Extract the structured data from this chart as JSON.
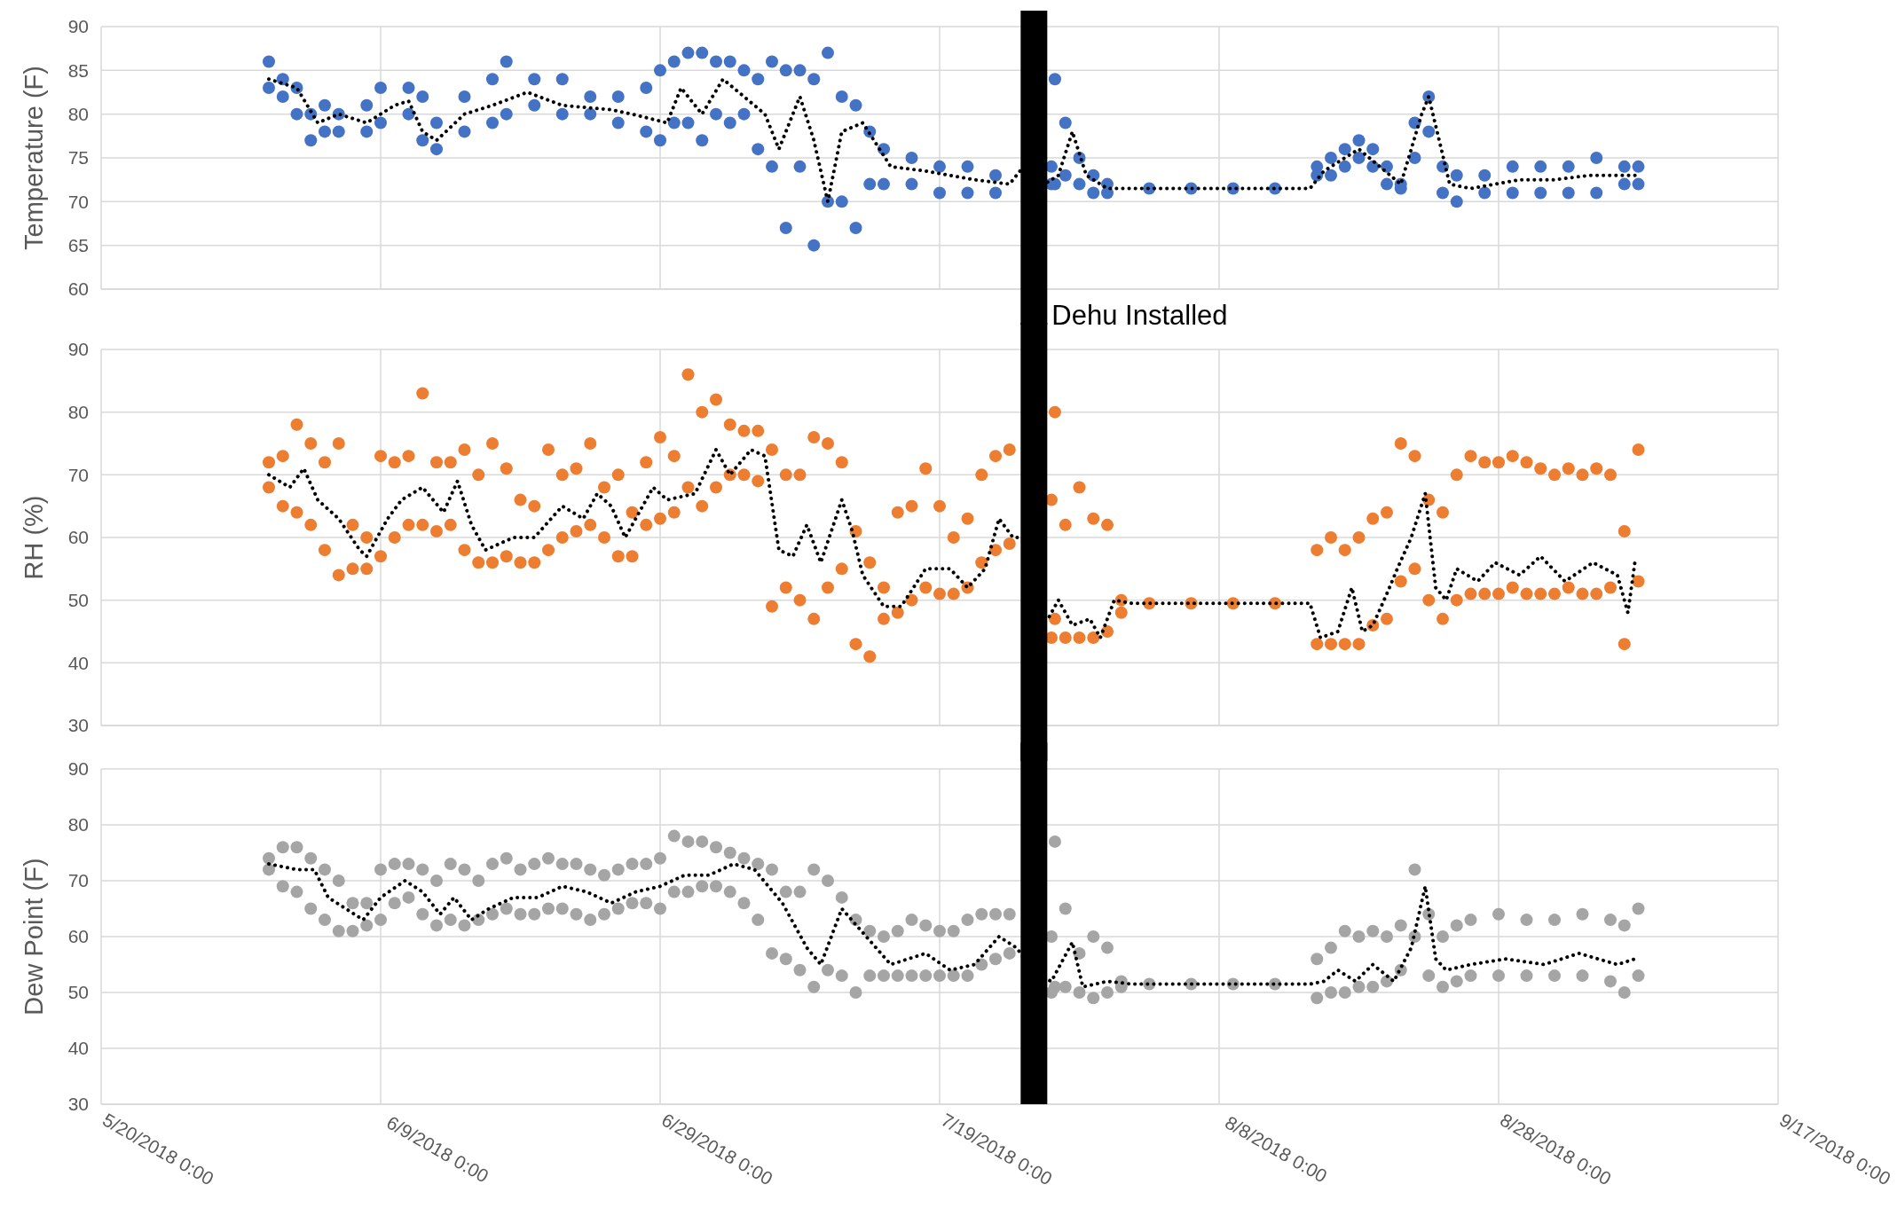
{
  "chart_data": [
    {
      "type": "scatter",
      "ylabel": "Temperature (F)",
      "xlim": [
        "2018-05-20",
        "2018-09-17"
      ],
      "ylim": [
        60,
        90
      ],
      "yticks": [
        60,
        65,
        70,
        75,
        80,
        85,
        90
      ],
      "xticks": [
        "2018-05-20",
        "2018-06-09",
        "2018-06-29",
        "2018-07-19",
        "2018-08-08",
        "2018-08-28",
        "2018-09-17"
      ],
      "tick_labels": "y",
      "grid": true,
      "ref_lines": [
        {
          "axis": "x",
          "value": "2018-07-25T18:00",
          "label": "Dehu Installed",
          "color": "#000000"
        }
      ],
      "series": [
        {
          "color": "#4472c4",
          "marker": "circle",
          "x": [
            "2018-06-01",
            "2018-06-01",
            "2018-06-02",
            "2018-06-02",
            "2018-06-03",
            "2018-06-03",
            "2018-06-04",
            "2018-06-04",
            "2018-06-05",
            "2018-06-05",
            "2018-06-06",
            "2018-06-06",
            "2018-06-08",
            "2018-06-08",
            "2018-06-09",
            "2018-06-09",
            "2018-06-11",
            "2018-06-11",
            "2018-06-12",
            "2018-06-12",
            "2018-06-13",
            "2018-06-13",
            "2018-06-15",
            "2018-06-15",
            "2018-06-17",
            "2018-06-17",
            "2018-06-18",
            "2018-06-18",
            "2018-06-20",
            "2018-06-20",
            "2018-06-22",
            "2018-06-22",
            "2018-06-24",
            "2018-06-24",
            "2018-06-26",
            "2018-06-26",
            "2018-06-28",
            "2018-06-28",
            "2018-06-29",
            "2018-06-29",
            "2018-06-30",
            "2018-06-30",
            "2018-07-01",
            "2018-07-01",
            "2018-07-02",
            "2018-07-02",
            "2018-07-03",
            "2018-07-03",
            "2018-07-04",
            "2018-07-04",
            "2018-07-05",
            "2018-07-05",
            "2018-07-06",
            "2018-07-06",
            "2018-07-07",
            "2018-07-07",
            "2018-07-08",
            "2018-07-08",
            "2018-07-09",
            "2018-07-09",
            "2018-07-10",
            "2018-07-10",
            "2018-07-11",
            "2018-07-11",
            "2018-07-12",
            "2018-07-12",
            "2018-07-13",
            "2018-07-13",
            "2018-07-14",
            "2018-07-14",
            "2018-07-15",
            "2018-07-15",
            "2018-07-17",
            "2018-07-17",
            "2018-07-19",
            "2018-07-19",
            "2018-07-21",
            "2018-07-21",
            "2018-07-23",
            "2018-07-23",
            "2018-07-27T06:00",
            "2018-07-27T06:00",
            "2018-07-27",
            "2018-07-27",
            "2018-07-28",
            "2018-07-28",
            "2018-07-29",
            "2018-07-29",
            "2018-07-30",
            "2018-07-30",
            "2018-07-31",
            "2018-07-31",
            "2018-08-03",
            "2018-08-06",
            "2018-08-09",
            "2018-08-12",
            "2018-08-15",
            "2018-08-15",
            "2018-08-16",
            "2018-08-16",
            "2018-08-17",
            "2018-08-17",
            "2018-08-18",
            "2018-08-18",
            "2018-08-19",
            "2018-08-19",
            "2018-08-20",
            "2018-08-20",
            "2018-08-21",
            "2018-08-21",
            "2018-08-22",
            "2018-08-22",
            "2018-08-23",
            "2018-08-23",
            "2018-08-24",
            "2018-08-24",
            "2018-08-25",
            "2018-08-25",
            "2018-08-27",
            "2018-08-27",
            "2018-08-29",
            "2018-08-29",
            "2018-08-31",
            "2018-08-31",
            "2018-09-02",
            "2018-09-02",
            "2018-09-04",
            "2018-09-04",
            "2018-09-06",
            "2018-09-06",
            "2018-09-07",
            "2018-09-07"
          ],
          "values": [
            86,
            83,
            84,
            82,
            83,
            80,
            80,
            77,
            81,
            78,
            80,
            78,
            81,
            78,
            83,
            79,
            83,
            80,
            82,
            77,
            79,
            76,
            82,
            78,
            84,
            79,
            86,
            80,
            84,
            81,
            84,
            80,
            82,
            80,
            82,
            79,
            83,
            78,
            85,
            77,
            86,
            79,
            87,
            79,
            87,
            77,
            86,
            80,
            86,
            79,
            85,
            80,
            84,
            76,
            86,
            74,
            85,
            67,
            85,
            74,
            84,
            65,
            87,
            70,
            82,
            70,
            81,
            67,
            78,
            72,
            76,
            72,
            75,
            72,
            74,
            71,
            74,
            71,
            73,
            71,
            84,
            72,
            74,
            72,
            79,
            73,
            75,
            72,
            73,
            71,
            72,
            71,
            71.5,
            71.5,
            71.5,
            71.5,
            74,
            73,
            75,
            73,
            76,
            74,
            77,
            75,
            76,
            74,
            74,
            72,
            72,
            71.5,
            79,
            75,
            82,
            78,
            74,
            71,
            73,
            70,
            73,
            71,
            74,
            71,
            74,
            71,
            74,
            71,
            75,
            71,
            74,
            72,
            74,
            72
          ]
        },
        {
          "type": "line",
          "color": "#000000",
          "line_style": "dotted",
          "x": [
            "2018-06-01",
            "2018-06-03",
            "2018-06-04T12:00",
            "2018-06-06",
            "2018-06-08",
            "2018-06-10",
            "2018-06-11",
            "2018-06-12",
            "2018-06-13",
            "2018-06-15",
            "2018-06-17",
            "2018-06-19T12:00",
            "2018-06-22",
            "2018-06-25T12:00",
            "2018-06-27",
            "2018-06-29T12:00",
            "2018-06-30T12:00",
            "2018-07-02",
            "2018-07-03T12:00",
            "2018-07-05",
            "2018-07-06T12:00",
            "2018-07-07T12:00",
            "2018-07-09",
            "2018-07-10",
            "2018-07-11",
            "2018-07-12",
            "2018-07-13T12:00",
            "2018-07-15T12:00",
            "2018-07-18",
            "2018-07-21T12:00",
            "2018-07-24",
            "2018-07-25T12:00",
            "2018-07-26T12:00",
            "2018-07-27T12:00",
            "2018-07-28T12:00",
            "2018-07-29T12:00",
            "2018-07-31",
            "2018-08-02",
            "2018-08-14T12:00",
            "2018-08-15T12:00",
            "2018-08-18",
            "2018-08-19T12:00",
            "2018-08-21",
            "2018-08-22T12:00",
            "2018-08-23",
            "2018-08-24T12:00",
            "2018-08-26",
            "2018-08-29T12:00",
            "2018-09-01",
            "2018-09-03T12:00",
            "2018-09-07"
          ],
          "values": [
            84,
            83,
            79,
            80,
            79,
            81,
            81.5,
            78,
            77,
            80,
            81,
            82.5,
            81,
            80.5,
            80,
            79,
            83,
            80,
            84,
            82,
            80,
            76,
            82,
            77,
            70,
            78,
            79,
            74,
            73.5,
            72.5,
            72,
            75,
            72,
            73,
            78,
            73,
            71.5,
            71.5,
            71.5,
            73.5,
            76,
            74,
            72,
            80,
            82,
            72,
            71.5,
            72.5,
            72.5,
            73,
            73
          ]
        }
      ]
    },
    {
      "type": "scatter",
      "ylabel": "RH (%)",
      "xlim": [
        "2018-05-20",
        "2018-09-17"
      ],
      "ylim": [
        30,
        90
      ],
      "yticks": [
        30,
        40,
        50,
        60,
        70,
        80,
        90
      ],
      "xticks": [
        "2018-05-20",
        "2018-06-09",
        "2018-06-29",
        "2018-07-19",
        "2018-08-08",
        "2018-08-28",
        "2018-09-17"
      ],
      "tick_labels": "y",
      "grid": true,
      "ref_lines": [
        {
          "axis": "x",
          "value": "2018-07-25T18:00",
          "color": "#000000"
        }
      ],
      "series": [
        {
          "color": "#ed7d31",
          "marker": "circle",
          "x": [
            "2018-06-01",
            "2018-06-01",
            "2018-06-02",
            "2018-06-02",
            "2018-06-03",
            "2018-06-03",
            "2018-06-04",
            "2018-06-04",
            "2018-06-05",
            "2018-06-05",
            "2018-06-06",
            "2018-06-06",
            "2018-06-07",
            "2018-06-07",
            "2018-06-08",
            "2018-06-08",
            "2018-06-09",
            "2018-06-09",
            "2018-06-10",
            "2018-06-10",
            "2018-06-11",
            "2018-06-11",
            "2018-06-12",
            "2018-06-12",
            "2018-06-13",
            "2018-06-13",
            "2018-06-14",
            "2018-06-14",
            "2018-06-15",
            "2018-06-15",
            "2018-06-16",
            "2018-06-16",
            "2018-06-17",
            "2018-06-17",
            "2018-06-18",
            "2018-06-18",
            "2018-06-19",
            "2018-06-19",
            "2018-06-20",
            "2018-06-20",
            "2018-06-21",
            "2018-06-21",
            "2018-06-22",
            "2018-06-22",
            "2018-06-23",
            "2018-06-23",
            "2018-06-24",
            "2018-06-24",
            "2018-06-25",
            "2018-06-25",
            "2018-06-26",
            "2018-06-26",
            "2018-06-27",
            "2018-06-27",
            "2018-06-28",
            "2018-06-28",
            "2018-06-29",
            "2018-06-29",
            "2018-06-30",
            "2018-06-30",
            "2018-07-01",
            "2018-07-01",
            "2018-07-02",
            "2018-07-02",
            "2018-07-03",
            "2018-07-03",
            "2018-07-04",
            "2018-07-04",
            "2018-07-05",
            "2018-07-05",
            "2018-07-06",
            "2018-07-06",
            "2018-07-07",
            "2018-07-07",
            "2018-07-08",
            "2018-07-08",
            "2018-07-09",
            "2018-07-09",
            "2018-07-10",
            "2018-07-10",
            "2018-07-11",
            "2018-07-11",
            "2018-07-12",
            "2018-07-12",
            "2018-07-13",
            "2018-07-13",
            "2018-07-14",
            "2018-07-14",
            "2018-07-15",
            "2018-07-15",
            "2018-07-16",
            "2018-07-16",
            "2018-07-17",
            "2018-07-17",
            "2018-07-18",
            "2018-07-18",
            "2018-07-19",
            "2018-07-19",
            "2018-07-20",
            "2018-07-20",
            "2018-07-21",
            "2018-07-21",
            "2018-07-22",
            "2018-07-22",
            "2018-07-23",
            "2018-07-23",
            "2018-07-24",
            "2018-07-24",
            "2018-07-27T06:00",
            "2018-07-27T06:00",
            "2018-07-27",
            "2018-07-27",
            "2018-07-28",
            "2018-07-28",
            "2018-07-29",
            "2018-07-29",
            "2018-07-30",
            "2018-07-30",
            "2018-07-31",
            "2018-07-31",
            "2018-08-01",
            "2018-08-01",
            "2018-08-03",
            "2018-08-06",
            "2018-08-09",
            "2018-08-12",
            "2018-08-15",
            "2018-08-15",
            "2018-08-16",
            "2018-08-16",
            "2018-08-17",
            "2018-08-17",
            "2018-08-18",
            "2018-08-18",
            "2018-08-19",
            "2018-08-19",
            "2018-08-20",
            "2018-08-20",
            "2018-08-21",
            "2018-08-21",
            "2018-08-22",
            "2018-08-22",
            "2018-08-23",
            "2018-08-23",
            "2018-08-24",
            "2018-08-24",
            "2018-08-25",
            "2018-08-25",
            "2018-08-26",
            "2018-08-26",
            "2018-08-27",
            "2018-08-27",
            "2018-08-28",
            "2018-08-28",
            "2018-08-29",
            "2018-08-29",
            "2018-08-30",
            "2018-08-30",
            "2018-08-31",
            "2018-08-31",
            "2018-09-01",
            "2018-09-01",
            "2018-09-02",
            "2018-09-02",
            "2018-09-03",
            "2018-09-03",
            "2018-09-04",
            "2018-09-04",
            "2018-09-05",
            "2018-09-05",
            "2018-09-06",
            "2018-09-06",
            "2018-09-07",
            "2018-09-07"
          ],
          "values": [
            72,
            68,
            73,
            65,
            78,
            64,
            75,
            62,
            72,
            58,
            75,
            54,
            62,
            55,
            60,
            55,
            73,
            57,
            72,
            60,
            73,
            62,
            83,
            62,
            72,
            61,
            72,
            62,
            74,
            58,
            70,
            56,
            75,
            56,
            71,
            57,
            66,
            56,
            65,
            56,
            74,
            58,
            70,
            60,
            71,
            61,
            75,
            62,
            68,
            60,
            70,
            57,
            64,
            57,
            72,
            62,
            76,
            63,
            73,
            64,
            86,
            68,
            80,
            65,
            82,
            68,
            78,
            70,
            77,
            70,
            77,
            69,
            74,
            49,
            70,
            52,
            70,
            50,
            76,
            47,
            75,
            52,
            72,
            55,
            61,
            43,
            56,
            41,
            52,
            47,
            64,
            48,
            65,
            50,
            71,
            52,
            65,
            51,
            60,
            51,
            63,
            52,
            70,
            56,
            73,
            58,
            74,
            59,
            80,
            47,
            66,
            44,
            62,
            44,
            68,
            44,
            63,
            44,
            62,
            45,
            50,
            48,
            49.5,
            49.5,
            49.5,
            49.5,
            58,
            43,
            60,
            43,
            58,
            43,
            60,
            43,
            63,
            46,
            64,
            47,
            75,
            53,
            73,
            55,
            66,
            50,
            64,
            47,
            70,
            50,
            73,
            51,
            72,
            51,
            72,
            51,
            73,
            52,
            72,
            51,
            71,
            51,
            70,
            51,
            71,
            52,
            70,
            51,
            71,
            51,
            70,
            52,
            61,
            43,
            74,
            53
          ]
        },
        {
          "type": "line",
          "color": "#000000",
          "line_style": "dotted",
          "x": [
            "2018-06-01",
            "2018-06-02T12:00",
            "2018-06-03T12:00",
            "2018-06-04T12:00",
            "2018-06-06",
            "2018-06-07T12:00",
            "2018-06-08",
            "2018-06-09T12:00",
            "2018-06-10T12:00",
            "2018-06-12",
            "2018-06-13T12:00",
            "2018-06-14T12:00",
            "2018-06-15T12:00",
            "2018-06-16T12:00",
            "2018-06-18T12:00",
            "2018-06-20",
            "2018-06-22",
            "2018-06-23T12:00",
            "2018-06-24T12:00",
            "2018-06-25T12:00",
            "2018-06-26T12:00",
            "2018-06-28T12:00",
            "2018-06-29T12:00",
            "2018-07-01T12:00",
            "2018-07-03",
            "2018-07-04",
            "2018-07-05T12:00",
            "2018-07-06T12:00",
            "2018-07-07T12:00",
            "2018-07-08T12:00",
            "2018-07-09T12:00",
            "2018-07-10T12:00",
            "2018-07-12",
            "2018-07-12T18:00",
            "2018-07-13T12:00",
            "2018-07-15",
            "2018-07-16T06:00",
            "2018-07-18",
            "2018-07-19T18:00",
            "2018-07-21",
            "2018-07-22T06:00",
            "2018-07-23T06:00",
            "2018-07-24T06:00",
            "2018-07-25T06:00",
            "2018-07-26",
            "2018-07-26T18:00",
            "2018-07-27T12:00",
            "2018-07-28T12:00",
            "2018-07-29T18:00",
            "2018-07-30T12:00",
            "2018-07-31T12:00",
            "2018-08-01T18:00",
            "2018-08-14T12:00",
            "2018-08-15T06:00",
            "2018-08-16T12:00",
            "2018-08-17T12:00",
            "2018-08-18T06:00",
            "2018-08-19",
            "2018-08-20",
            "2018-08-20T18:00",
            "2018-08-21T18:00",
            "2018-08-22T18:00",
            "2018-08-23T12:00",
            "2018-08-24T06:00",
            "2018-08-25",
            "2018-08-26T12:00",
            "2018-08-27T18:00",
            "2018-08-29T12:00",
            "2018-08-31",
            "2018-09-01T18:00",
            "2018-09-03T18:00",
            "2018-09-05T12:00",
            "2018-09-06T06:00",
            "2018-09-06T18:00"
          ],
          "values": [
            70,
            68,
            71,
            66,
            63,
            58,
            57,
            63,
            66,
            68,
            64,
            69,
            62,
            58,
            60,
            60,
            65,
            63,
            67,
            65,
            60,
            68,
            66,
            67,
            74,
            70,
            74,
            73,
            58,
            57,
            62,
            56,
            66,
            61,
            54,
            49,
            49,
            55,
            55,
            52,
            55,
            63,
            60,
            60,
            48,
            47,
            50,
            46,
            47,
            44,
            50,
            49.5,
            49.5,
            44,
            45,
            52,
            45,
            46,
            51,
            55,
            60,
            67,
            52,
            50,
            55,
            53,
            56,
            54,
            57,
            53,
            56,
            54,
            48,
            56
          ]
        }
      ]
    },
    {
      "type": "scatter",
      "ylabel": "Dew Point (F)",
      "xlim": [
        "2018-05-20",
        "2018-09-17"
      ],
      "ylim": [
        30,
        90
      ],
      "yticks": [
        30,
        40,
        50,
        60,
        70,
        80,
        90
      ],
      "xticks": [
        {
          "value": "2018-05-20",
          "label": "5/20/2018 0:00"
        },
        {
          "value": "2018-06-09",
          "label": "6/9/2018 0:00"
        },
        {
          "value": "2018-06-29",
          "label": "6/29/2018 0:00"
        },
        {
          "value": "2018-07-19",
          "label": "7/19/2018 0:00"
        },
        {
          "value": "2018-08-08",
          "label": "8/8/2018 0:00"
        },
        {
          "value": "2018-08-28",
          "label": "8/28/2018 0:00"
        },
        {
          "value": "2018-09-17",
          "label": "9/17/2018 0:00"
        }
      ],
      "grid": true,
      "ref_lines": [
        {
          "axis": "x",
          "value": "2018-07-25T18:00",
          "color": "#000000"
        }
      ],
      "series": [
        {
          "color": "#a5a5a5",
          "marker": "circle",
          "x": [
            "2018-06-01",
            "2018-06-01",
            "2018-06-02",
            "2018-06-02",
            "2018-06-03",
            "2018-06-03",
            "2018-06-04",
            "2018-06-04",
            "2018-06-05",
            "2018-06-05",
            "2018-06-06",
            "2018-06-06",
            "2018-06-07",
            "2018-06-07",
            "2018-06-08",
            "2018-06-08",
            "2018-06-09",
            "2018-06-09",
            "2018-06-10",
            "2018-06-10",
            "2018-06-11",
            "2018-06-11",
            "2018-06-12",
            "2018-06-12",
            "2018-06-13",
            "2018-06-13",
            "2018-06-14",
            "2018-06-14",
            "2018-06-15",
            "2018-06-15",
            "2018-06-16",
            "2018-06-16",
            "2018-06-17",
            "2018-06-17",
            "2018-06-18",
            "2018-06-18",
            "2018-06-19",
            "2018-06-19",
            "2018-06-20",
            "2018-06-20",
            "2018-06-21",
            "2018-06-21",
            "2018-06-22",
            "2018-06-22",
            "2018-06-23",
            "2018-06-23",
            "2018-06-24",
            "2018-06-24",
            "2018-06-25",
            "2018-06-25",
            "2018-06-26",
            "2018-06-26",
            "2018-06-27",
            "2018-06-27",
            "2018-06-28",
            "2018-06-28",
            "2018-06-29",
            "2018-06-29",
            "2018-06-30",
            "2018-06-30",
            "2018-07-01",
            "2018-07-01",
            "2018-07-02",
            "2018-07-02",
            "2018-07-03",
            "2018-07-03",
            "2018-07-04",
            "2018-07-04",
            "2018-07-05",
            "2018-07-05",
            "2018-07-06",
            "2018-07-06",
            "2018-07-07",
            "2018-07-07",
            "2018-07-08",
            "2018-07-08",
            "2018-07-09",
            "2018-07-09",
            "2018-07-10",
            "2018-07-10",
            "2018-07-11",
            "2018-07-11",
            "2018-07-12",
            "2018-07-12",
            "2018-07-13",
            "2018-07-13",
            "2018-07-14",
            "2018-07-14",
            "2018-07-15",
            "2018-07-15",
            "2018-07-16",
            "2018-07-16",
            "2018-07-17",
            "2018-07-17",
            "2018-07-18",
            "2018-07-18",
            "2018-07-19",
            "2018-07-19",
            "2018-07-20",
            "2018-07-20",
            "2018-07-21",
            "2018-07-21",
            "2018-07-22",
            "2018-07-22",
            "2018-07-23",
            "2018-07-23",
            "2018-07-24",
            "2018-07-24",
            "2018-07-27T06:00",
            "2018-07-27T06:00",
            "2018-07-27",
            "2018-07-27",
            "2018-07-28",
            "2018-07-28",
            "2018-07-29",
            "2018-07-29",
            "2018-07-30",
            "2018-07-30",
            "2018-07-31",
            "2018-07-31",
            "2018-08-01",
            "2018-08-01",
            "2018-08-03",
            "2018-08-06",
            "2018-08-09",
            "2018-08-12",
            "2018-08-15",
            "2018-08-15",
            "2018-08-16",
            "2018-08-16",
            "2018-08-17",
            "2018-08-17",
            "2018-08-18",
            "2018-08-18",
            "2018-08-19",
            "2018-08-19",
            "2018-08-20",
            "2018-08-20",
            "2018-08-21",
            "2018-08-21",
            "2018-08-22",
            "2018-08-22",
            "2018-08-23",
            "2018-08-23",
            "2018-08-24",
            "2018-08-24",
            "2018-08-25",
            "2018-08-25",
            "2018-08-26",
            "2018-08-26",
            "2018-08-28",
            "2018-08-28",
            "2018-08-30",
            "2018-08-30",
            "2018-09-01",
            "2018-09-01",
            "2018-09-03",
            "2018-09-03",
            "2018-09-05",
            "2018-09-05",
            "2018-09-06",
            "2018-09-06",
            "2018-09-07",
            "2018-09-07"
          ],
          "values": [
            74,
            72,
            76,
            69,
            76,
            68,
            74,
            65,
            72,
            63,
            70,
            61,
            66,
            61,
            66,
            62,
            72,
            63,
            73,
            66,
            73,
            67,
            72,
            64,
            70,
            62,
            73,
            63,
            72,
            62,
            70,
            63,
            73,
            64,
            74,
            65,
            72,
            64,
            73,
            64,
            74,
            65,
            73,
            65,
            73,
            64,
            72,
            63,
            71,
            64,
            72,
            65,
            73,
            66,
            73,
            66,
            74,
            65,
            78,
            68,
            77,
            68,
            77,
            69,
            76,
            69,
            75,
            68,
            74,
            66,
            73,
            63,
            72,
            57,
            68,
            56,
            68,
            54,
            72,
            51,
            70,
            54,
            67,
            53,
            63,
            50,
            61,
            53,
            60,
            53,
            61,
            53,
            63,
            53,
            62,
            53,
            61,
            53,
            61,
            53,
            63,
            53,
            64,
            55,
            64,
            56,
            64,
            57,
            77,
            51,
            60,
            50,
            65,
            51,
            57,
            50,
            60,
            49,
            58,
            50,
            52,
            51,
            51.5,
            51.5,
            51.5,
            51.5,
            56,
            49,
            58,
            50,
            61,
            50,
            60,
            51,
            61,
            51,
            60,
            52,
            62,
            54,
            72,
            60,
            64,
            53,
            60,
            51,
            62,
            52,
            63,
            53,
            64,
            53,
            63,
            53,
            63,
            53,
            64,
            53,
            63,
            52,
            62,
            50,
            65,
            53
          ]
        },
        {
          "type": "line",
          "color": "#000000",
          "line_style": "dotted",
          "x": [
            "2018-06-01",
            "2018-06-03",
            "2018-06-04T06:00",
            "2018-06-05T06:00",
            "2018-06-06T12:00",
            "2018-06-07T18:00",
            "2018-06-09",
            "2018-06-10T18:00",
            "2018-06-12",
            "2018-06-13T06:00",
            "2018-06-14T06:00",
            "2018-06-15T12:00",
            "2018-06-16T18:00",
            "2018-06-18T12:00",
            "2018-06-20T06:00",
            "2018-06-22",
            "2018-06-23T18:00",
            "2018-06-25T12:00",
            "2018-06-27T06:00",
            "2018-06-29",
            "2018-06-30T18:00",
            "2018-07-02T12:00",
            "2018-07-04T06:00",
            "2018-07-05T18:00",
            "2018-07-07T18:00",
            "2018-07-09T12:00",
            "2018-07-10T12:00",
            "2018-07-12",
            "2018-07-13T18:00",
            "2018-07-15T12:00",
            "2018-07-18",
            "2018-07-19T18:00",
            "2018-07-21T12:00",
            "2018-07-23T06:00",
            "2018-07-24T12:00",
            "2018-07-26",
            "2018-07-27",
            "2018-07-28T12:00",
            "2018-07-29T06:00",
            "2018-07-31",
            "2018-08-01T18:00",
            "2018-08-14T12:00",
            "2018-08-15T12:00",
            "2018-08-16T12:00",
            "2018-08-17T18:00",
            "2018-08-19",
            "2018-08-20T12:00",
            "2018-08-21T18:00",
            "2018-08-22T18:00",
            "2018-08-23T12:00",
            "2018-08-24T06:00",
            "2018-08-26",
            "2018-08-28T12:00",
            "2018-08-31T06:00",
            "2018-09-02T18:00",
            "2018-09-05T12:00",
            "2018-09-06T18:00"
          ],
          "values": [
            73,
            72,
            72,
            67,
            65,
            63,
            67,
            70,
            68,
            64,
            67,
            63,
            65,
            67,
            67,
            69,
            68,
            66,
            68,
            69,
            71,
            71,
            73,
            72,
            66,
            58,
            55,
            65,
            60,
            55,
            57,
            54,
            55,
            60,
            58,
            53,
            52,
            59,
            51,
            52,
            51.5,
            51.5,
            52,
            54,
            52,
            55,
            52,
            58,
            69,
            56,
            54,
            55,
            56,
            55,
            57,
            55,
            56
          ]
        }
      ]
    }
  ]
}
